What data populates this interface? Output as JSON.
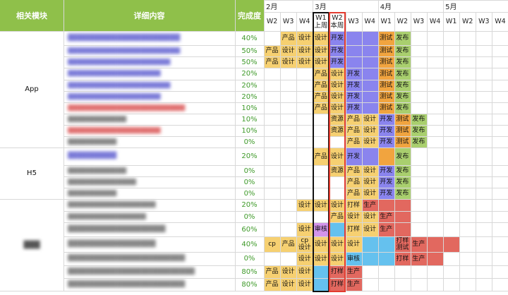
{
  "headers": {
    "module": "相关模块",
    "detail": "详细内容",
    "progress": "完成度"
  },
  "months": [
    "2月",
    "3月",
    "4月",
    "5月"
  ],
  "weeks": [
    "W2",
    "W3",
    "W4",
    "W1\n上周",
    "W2\n本周",
    "W3",
    "W4",
    "W1",
    "W2",
    "W3",
    "W4",
    "W1",
    "W2",
    "W3",
    "W4"
  ],
  "modules": [
    "App",
    "H5",
    "███"
  ],
  "colors": {
    "header_green": "#8fc04a",
    "yellow": "#f6d071",
    "purple": "#8a84ee",
    "orange": "#f1a43f",
    "green": "#a9cf6e",
    "blue": "#65c1ee",
    "red": "#e2685f",
    "pink": "#d394ea",
    "current_week_border": "#e23b2f",
    "last_week_border": "#111111",
    "progress_text": "#3f9a2a"
  },
  "rows": [
    {
      "detail": "███████████████████████",
      "detail_color": "#7b7bd8",
      "progress": "40%"
    },
    {
      "detail": "███████████████████████",
      "detail_color": "#7b7bd8",
      "progress": "50%"
    },
    {
      "detail": "█████████████████████",
      "detail_color": "#7b7bd8",
      "progress": "50%"
    },
    {
      "detail": "███████████████████",
      "detail_color": "#7b7bd8",
      "progress": "20%"
    },
    {
      "detail": "█████████████████████",
      "detail_color": "#7b7bd8",
      "progress": "20%"
    },
    {
      "detail": "███████████████████",
      "detail_color": "#7b7bd8",
      "progress": "20%"
    },
    {
      "detail": "████████████████████████",
      "detail_color": "#e07070",
      "progress": "10%"
    },
    {
      "detail": "████████████",
      "detail_color": "#888888",
      "progress": "10%"
    },
    {
      "detail": "███████████████████",
      "detail_color": "#e07070",
      "progress": "10%"
    },
    {
      "detail": "██████████",
      "detail_color": "#888888",
      "progress": "0%"
    },
    {
      "detail": "██████████",
      "detail_color": "#7b7bd8",
      "progress": "20%"
    },
    {
      "detail": "████████████",
      "detail_color": "#888888",
      "progress": "0%"
    },
    {
      "detail": "██████████████",
      "detail_color": "#888888",
      "progress": "0%"
    },
    {
      "detail": "██████████",
      "detail_color": "#888888",
      "progress": "0%"
    },
    {
      "detail": "██████████████████",
      "detail_color": "#888888",
      "progress": "20%"
    },
    {
      "detail": "████████████████",
      "detail_color": "#888888",
      "progress": "0%"
    },
    {
      "detail": "████████████████████",
      "detail_color": "#888888",
      "progress": "60%"
    },
    {
      "detail": "██████████████████",
      "detail_color": "#888888",
      "progress": "40%"
    },
    {
      "detail": "████████████████████████",
      "detail_color": "#888888",
      "progress": "0%"
    },
    {
      "detail": "██████████████████████████",
      "detail_color": "#888888",
      "progress": "80%"
    },
    {
      "detail": "████████████████████████",
      "detail_color": "#888888",
      "progress": "80%"
    }
  ],
  "gantt": [
    [
      [
        1,
        1,
        "yellow",
        "产品"
      ],
      [
        2,
        2,
        "yellow",
        "设计"
      ],
      [
        3,
        3,
        "yellow",
        "设计"
      ],
      [
        4,
        4,
        "purple",
        "开发"
      ],
      [
        5,
        6,
        "purple",
        ""
      ],
      [
        7,
        7,
        "orange",
        "测试"
      ],
      [
        8,
        8,
        "green",
        "发布"
      ]
    ],
    [
      [
        0,
        0,
        "yellow",
        "产品"
      ],
      [
        1,
        1,
        "yellow",
        "设计"
      ],
      [
        2,
        2,
        "yellow",
        "设计"
      ],
      [
        3,
        3,
        "yellow",
        "设计"
      ],
      [
        4,
        4,
        "purple",
        "开发"
      ],
      [
        5,
        6,
        "purple",
        ""
      ],
      [
        7,
        7,
        "orange",
        "测试"
      ],
      [
        8,
        8,
        "green",
        "发布"
      ]
    ],
    [
      [
        0,
        0,
        "yellow",
        "产品"
      ],
      [
        1,
        1,
        "yellow",
        "设计"
      ],
      [
        2,
        2,
        "yellow",
        "设计"
      ],
      [
        3,
        3,
        "yellow",
        "设计"
      ],
      [
        4,
        4,
        "purple",
        "开发"
      ],
      [
        5,
        6,
        "purple",
        ""
      ],
      [
        7,
        7,
        "orange",
        "测试"
      ],
      [
        8,
        8,
        "green",
        "发布"
      ]
    ],
    [
      [
        3,
        3,
        "yellow",
        "产品"
      ],
      [
        4,
        4,
        "yellow",
        "设计"
      ],
      [
        5,
        5,
        "purple",
        "开发"
      ],
      [
        6,
        6,
        "purple",
        ""
      ],
      [
        7,
        7,
        "orange",
        "测试"
      ],
      [
        8,
        8,
        "green",
        "发布"
      ]
    ],
    [
      [
        3,
        3,
        "yellow",
        "产品"
      ],
      [
        4,
        4,
        "yellow",
        "设计"
      ],
      [
        5,
        5,
        "purple",
        "开发"
      ],
      [
        6,
        6,
        "purple",
        ""
      ],
      [
        7,
        7,
        "orange",
        "测试"
      ],
      [
        8,
        8,
        "green",
        "发布"
      ]
    ],
    [
      [
        3,
        3,
        "yellow",
        "产品"
      ],
      [
        4,
        4,
        "yellow",
        "设计"
      ],
      [
        5,
        5,
        "purple",
        "开发"
      ],
      [
        6,
        6,
        "purple",
        ""
      ],
      [
        7,
        7,
        "orange",
        "测试"
      ],
      [
        8,
        8,
        "green",
        "发布"
      ]
    ],
    [
      [
        3,
        3,
        "yellow",
        "产品"
      ],
      [
        4,
        4,
        "yellow",
        "设计"
      ],
      [
        5,
        5,
        "purple",
        "开发"
      ],
      [
        6,
        6,
        "purple",
        ""
      ],
      [
        7,
        7,
        "orange",
        "测试"
      ],
      [
        8,
        8,
        "green",
        "发布"
      ]
    ],
    [
      [
        4,
        4,
        "yellow",
        "资源"
      ],
      [
        5,
        5,
        "yellow",
        "产品"
      ],
      [
        6,
        6,
        "yellow",
        "设计"
      ],
      [
        7,
        7,
        "purple",
        "开发"
      ],
      [
        8,
        8,
        "orange",
        "测试"
      ],
      [
        9,
        9,
        "green",
        "发布"
      ]
    ],
    [
      [
        4,
        4,
        "yellow",
        "资源"
      ],
      [
        5,
        5,
        "yellow",
        "产品"
      ],
      [
        6,
        6,
        "yellow",
        "设计"
      ],
      [
        7,
        7,
        "purple",
        "开发"
      ],
      [
        8,
        8,
        "orange",
        "测试"
      ],
      [
        9,
        9,
        "green",
        "发布"
      ]
    ],
    [
      [
        5,
        5,
        "yellow",
        "产品"
      ],
      [
        6,
        6,
        "yellow",
        "设计"
      ],
      [
        7,
        7,
        "purple",
        "开发"
      ],
      [
        8,
        8,
        "orange",
        "测试"
      ],
      [
        9,
        9,
        "green",
        "发布"
      ]
    ],
    [
      [
        3,
        3,
        "yellow",
        "产品"
      ],
      [
        4,
        4,
        "yellow",
        "设计"
      ],
      [
        5,
        5,
        "purple",
        "开发"
      ],
      [
        6,
        6,
        "purple",
        ""
      ],
      [
        7,
        7,
        "orange",
        ""
      ],
      [
        8,
        8,
        "green",
        "发布"
      ]
    ],
    [
      [
        4,
        4,
        "yellow",
        "资源"
      ],
      [
        5,
        5,
        "yellow",
        "产品"
      ],
      [
        6,
        6,
        "yellow",
        "设计"
      ],
      [
        7,
        7,
        "purple",
        "开发"
      ],
      [
        8,
        8,
        "green",
        "发布"
      ]
    ],
    [
      [
        5,
        5,
        "yellow",
        "产品"
      ],
      [
        6,
        6,
        "yellow",
        "设计"
      ],
      [
        7,
        7,
        "purple",
        "开发"
      ],
      [
        8,
        8,
        "green",
        "发布"
      ]
    ],
    [
      [
        5,
        5,
        "yellow",
        "产品"
      ],
      [
        6,
        6,
        "yellow",
        "设计"
      ],
      [
        7,
        7,
        "purple",
        "开发"
      ],
      [
        8,
        8,
        "green",
        "发布"
      ]
    ],
    [
      [
        2,
        2,
        "yellow",
        "设计"
      ],
      [
        3,
        3,
        "yellow",
        "设计"
      ],
      [
        4,
        4,
        "yellow",
        "设计"
      ],
      [
        5,
        5,
        "yellow",
        "打样"
      ],
      [
        6,
        6,
        "red",
        "生产"
      ],
      [
        7,
        8,
        "red",
        ""
      ]
    ],
    [
      [
        4,
        4,
        "yellow",
        "产品"
      ],
      [
        5,
        5,
        "yellow",
        "设计"
      ],
      [
        6,
        6,
        "yellow",
        "设计"
      ],
      [
        7,
        7,
        "red",
        "生产"
      ],
      [
        8,
        8,
        "red",
        ""
      ]
    ],
    [
      [
        2,
        2,
        "yellow",
        "设计"
      ],
      [
        3,
        3,
        "pink",
        "审核"
      ],
      [
        4,
        4,
        "blue",
        ""
      ],
      [
        5,
        5,
        "yellow",
        "打样"
      ],
      [
        6,
        6,
        "yellow",
        "设计"
      ],
      [
        7,
        7,
        "red",
        "生产"
      ],
      [
        8,
        8,
        "red",
        ""
      ]
    ],
    [
      [
        0,
        0,
        "yellow",
        "cp"
      ],
      [
        1,
        1,
        "yellow",
        "产品"
      ],
      [
        2,
        2,
        "yellow",
        "cp\n设计"
      ],
      [
        3,
        3,
        "yellow",
        "设计"
      ],
      [
        4,
        4,
        "yellow",
        "设计"
      ],
      [
        5,
        5,
        "yellow",
        "设计"
      ],
      [
        6,
        7,
        "blue",
        ""
      ],
      [
        8,
        8,
        "red",
        "打样\n测试"
      ],
      [
        9,
        9,
        "red",
        "生产"
      ],
      [
        10,
        11,
        "red",
        ""
      ]
    ],
    [
      [
        2,
        2,
        "yellow",
        "设计"
      ],
      [
        3,
        3,
        "yellow",
        "设计"
      ],
      [
        4,
        4,
        "yellow",
        "设计"
      ],
      [
        5,
        5,
        "blue",
        "审核"
      ],
      [
        6,
        7,
        "blue",
        ""
      ],
      [
        8,
        8,
        "red",
        "打样"
      ],
      [
        9,
        9,
        "red",
        "生产"
      ],
      [
        10,
        10,
        "red",
        ""
      ]
    ],
    [
      [
        0,
        0,
        "yellow",
        "产品"
      ],
      [
        1,
        1,
        "yellow",
        "设计"
      ],
      [
        2,
        2,
        "yellow",
        "设计"
      ],
      [
        3,
        3,
        "blue",
        ""
      ],
      [
        4,
        4,
        "red",
        "打样"
      ],
      [
        5,
        5,
        "red",
        "生产"
      ]
    ],
    [
      [
        0,
        0,
        "yellow",
        "产品"
      ],
      [
        1,
        1,
        "yellow",
        "设计"
      ],
      [
        2,
        2,
        "yellow",
        "设计"
      ],
      [
        3,
        3,
        "blue",
        ""
      ],
      [
        4,
        4,
        "red",
        "打样"
      ],
      [
        5,
        5,
        "red",
        "生产"
      ]
    ]
  ]
}
